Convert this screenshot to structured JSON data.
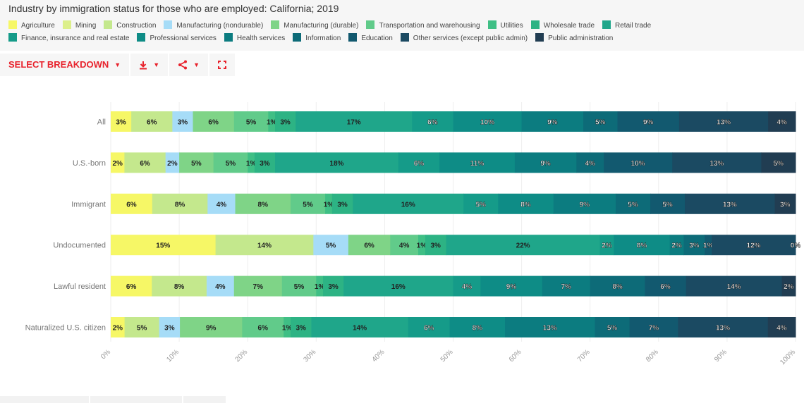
{
  "title": "Industry by immigration status for those who are employed: California; 2019",
  "toolbar": {
    "select_breakdown": "SELECT BREAKDOWN"
  },
  "icons": [
    "caret-down-icon",
    "download-icon",
    "share-icon",
    "fullscreen-icon"
  ],
  "colors": {
    "accent": "#e8222c"
  },
  "chart_data": {
    "type": "bar",
    "orientation": "horizontal",
    "stacked": true,
    "categories": [
      "All",
      "U.S.-born",
      "Immigrant",
      "Undocumented",
      "Lawful resident",
      "Naturalized U.S. citizen"
    ],
    "xlim": [
      0,
      100
    ],
    "xticks": [
      "0%",
      "10%",
      "20%",
      "30%",
      "40%",
      "50%",
      "60%",
      "70%",
      "80%",
      "90%",
      "100%"
    ],
    "legend_position": "top",
    "series": [
      {
        "name": "Agriculture",
        "color": "#f6f766",
        "values": [
          3,
          2,
          6,
          15,
          6,
          2
        ]
      },
      {
        "name": "Mining",
        "color": "#dcef8a",
        "values": [
          0,
          0,
          0,
          0,
          0,
          0
        ]
      },
      {
        "name": "Construction",
        "color": "#c4e88d",
        "values": [
          6,
          6,
          8,
          14,
          8,
          5
        ]
      },
      {
        "name": "Manufacturing (nondurable)",
        "color": "#a6dcf7",
        "values": [
          3,
          2,
          4,
          5,
          4,
          3
        ]
      },
      {
        "name": "Manufacturing (durable)",
        "color": "#7fd487",
        "values": [
          6,
          5,
          8,
          6,
          7,
          9
        ]
      },
      {
        "name": "Transportation and warehousing",
        "color": "#61cb8a",
        "values": [
          5,
          5,
          5,
          4,
          5,
          6
        ]
      },
      {
        "name": "Utilities",
        "color": "#3fbf85",
        "values": [
          1,
          1,
          1,
          1,
          1,
          1
        ]
      },
      {
        "name": "Wholesale trade",
        "color": "#2db384",
        "values": [
          3,
          3,
          3,
          3,
          3,
          3
        ]
      },
      {
        "name": "Retail trade",
        "color": "#1fa68a",
        "values": [
          17,
          18,
          16,
          22,
          16,
          14
        ]
      },
      {
        "name": "Finance, insurance and real estate",
        "color": "#159b89",
        "values": [
          6,
          6,
          5,
          2,
          4,
          6
        ]
      },
      {
        "name": "Professional services",
        "color": "#0e8c86",
        "values": [
          10,
          11,
          8,
          8,
          9,
          8
        ]
      },
      {
        "name": "Health services",
        "color": "#0c7c80",
        "values": [
          9,
          9,
          9,
          2,
          7,
          13
        ]
      },
      {
        "name": "Information",
        "color": "#0d6b78",
        "values": [
          5,
          4,
          5,
          3,
          8,
          5
        ]
      },
      {
        "name": "Education",
        "color": "#12596f",
        "values": [
          9,
          10,
          5,
          1,
          6,
          7
        ]
      },
      {
        "name": "Other services (except public admin)",
        "color": "#1b4a62",
        "values": [
          13,
          13,
          13,
          12,
          14,
          13
        ]
      },
      {
        "name": "Public administration",
        "color": "#213d52",
        "values": [
          4,
          5,
          3,
          0,
          2,
          4
        ]
      }
    ]
  }
}
